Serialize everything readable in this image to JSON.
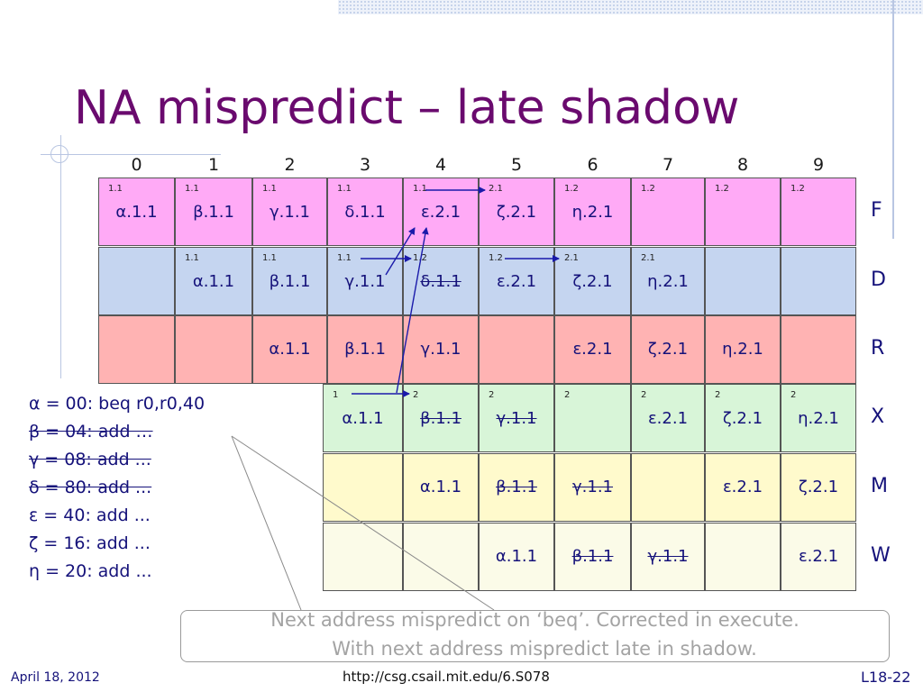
{
  "title": "NA mispredict – late shadow",
  "columns": [
    "0",
    "1",
    "2",
    "3",
    "4",
    "5",
    "6",
    "7",
    "8",
    "9"
  ],
  "stages": [
    "F",
    "D",
    "R",
    "X",
    "M",
    "W"
  ],
  "colors": {
    "F": "#ffaaf6",
    "D": "#c5d5f0",
    "R": "#ffb3b3",
    "X": "#d8f5d8",
    "M": "#fffacc",
    "W": "#fbfbe8",
    "title": "#6a0a6e",
    "text": "#15127a",
    "arrow": "#1a1aaa"
  },
  "grid": {
    "F": [
      {
        "sm": "1.1",
        "main": "α.1.1"
      },
      {
        "sm": "1.1",
        "main": "β.1.1"
      },
      {
        "sm": "1.1",
        "main": "γ.1.1"
      },
      {
        "sm": "1.1",
        "main": "δ.1.1"
      },
      {
        "sm": "1.1",
        "main": "ε.2.1"
      },
      {
        "sm": "2.1",
        "main": "ζ.2.1"
      },
      {
        "sm": "1.2",
        "main": "η.2.1"
      },
      {
        "sm": "1.2",
        "main": ""
      },
      {
        "sm": "1.2",
        "main": ""
      },
      {
        "sm": "1.2",
        "main": ""
      }
    ],
    "D": [
      {
        "sm": "",
        "main": ""
      },
      {
        "sm": "1.1",
        "main": "α.1.1"
      },
      {
        "sm": "1.1",
        "main": "β.1.1"
      },
      {
        "sm": "1.1",
        "main": "γ.1.1"
      },
      {
        "sm": "1.2",
        "main": "δ.1.1",
        "strike": true
      },
      {
        "sm": "1.2",
        "main": "ε.2.1"
      },
      {
        "sm": "2.1",
        "main": "ζ.2.1"
      },
      {
        "sm": "2.1",
        "main": "η.2.1"
      },
      {
        "sm": "",
        "main": ""
      },
      {
        "sm": "",
        "main": ""
      }
    ],
    "R": [
      {
        "sm": "",
        "main": ""
      },
      {
        "sm": "",
        "main": ""
      },
      {
        "sm": "",
        "main": "α.1.1"
      },
      {
        "sm": "",
        "main": "β.1.1"
      },
      {
        "sm": "",
        "main": "γ.1.1"
      },
      {
        "sm": "",
        "main": ""
      },
      {
        "sm": "",
        "main": "ε.2.1"
      },
      {
        "sm": "",
        "main": "ζ.2.1"
      },
      {
        "sm": "",
        "main": "η.2.1"
      },
      {
        "sm": "",
        "main": ""
      }
    ],
    "X": [
      {
        "sm": "1",
        "main": "α.1.1"
      },
      {
        "sm": "2",
        "main": "β.1.1",
        "strike": true
      },
      {
        "sm": "2",
        "main": "γ.1.1",
        "strike": true
      },
      {
        "sm": "2",
        "main": ""
      },
      {
        "sm": "2",
        "main": "ε.2.1"
      },
      {
        "sm": "2",
        "main": "ζ.2.1"
      },
      {
        "sm": "2",
        "main": "η.2.1"
      }
    ],
    "M": [
      {
        "sm": "",
        "main": ""
      },
      {
        "sm": "",
        "main": "α.1.1"
      },
      {
        "sm": "",
        "main": "β.1.1",
        "strike": true
      },
      {
        "sm": "",
        "main": "γ.1.1",
        "strike": true
      },
      {
        "sm": "",
        "main": ""
      },
      {
        "sm": "",
        "main": "ε.2.1"
      },
      {
        "sm": "",
        "main": "ζ.2.1"
      }
    ],
    "W": [
      {
        "sm": "",
        "main": ""
      },
      {
        "sm": "",
        "main": ""
      },
      {
        "sm": "",
        "main": "α.1.1"
      },
      {
        "sm": "",
        "main": "β.1.1",
        "strike": true
      },
      {
        "sm": "",
        "main": "γ.1.1",
        "strike": true
      },
      {
        "sm": "",
        "main": ""
      },
      {
        "sm": "",
        "main": "ε.2.1"
      }
    ]
  },
  "instructions": [
    {
      "text": "α = 00: beq r0,r0,40",
      "strike": false
    },
    {
      "text": "β = 04: add …",
      "strike": true
    },
    {
      "text": "γ = 08: add ...",
      "strike": true
    },
    {
      "text": "δ = 80: add ...",
      "strike": true
    },
    {
      "text": "ε = 40: add ...",
      "strike": false
    },
    {
      "text": "ζ = 16: add ...",
      "strike": false
    },
    {
      "text": "η = 20: add ...",
      "strike": false
    }
  ],
  "note": {
    "line1": "Next address mispredict on ‘beq’. Corrected in execute.",
    "line2": "With next address mispredict late in shadow."
  },
  "footer": {
    "date": "April 18, 2012",
    "url": "http://csg.csail.mit.edu/6.S078",
    "page": "L18-22"
  }
}
